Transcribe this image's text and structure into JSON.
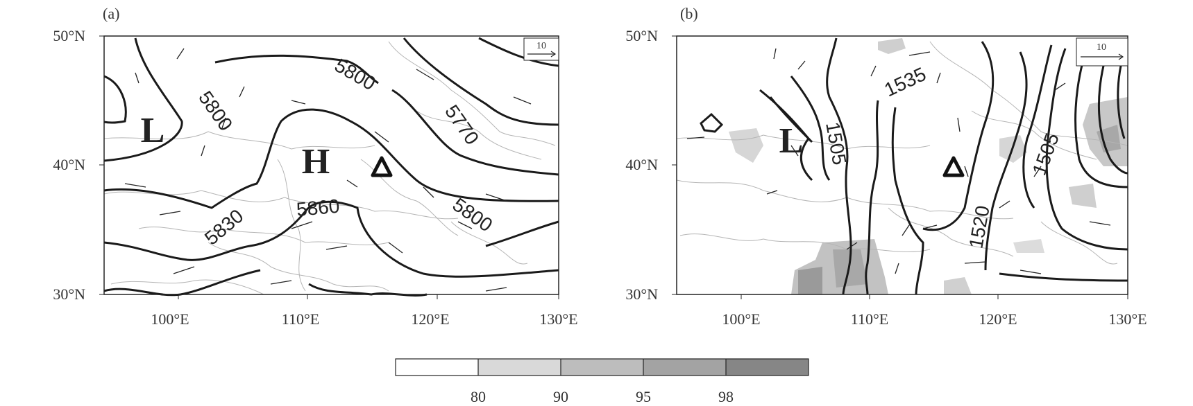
{
  "panels": [
    {
      "label": "(a)",
      "lat_ticks": [
        "50°N",
        "40°N",
        "30°N"
      ],
      "lon_ticks": [
        "100°E",
        "110°E",
        "120°E",
        "130°E"
      ],
      "ref_vector": "10",
      "centers": [
        "L",
        "H"
      ],
      "contour_labels": [
        "5800",
        "5800",
        "5770",
        "5800",
        "5830",
        "5860"
      ]
    },
    {
      "label": "(b)",
      "lat_ticks": [
        "50°N",
        "40°N",
        "30°N"
      ],
      "lon_ticks": [
        "100°E",
        "110°E",
        "120°E",
        "130°E"
      ],
      "ref_vector": "10",
      "centers": [
        "L"
      ],
      "contour_labels": [
        "1535",
        "1505",
        "1505",
        "1520"
      ]
    }
  ],
  "colorbar": {
    "labels": [
      "80",
      "90",
      "95",
      "98"
    ],
    "colors": [
      "#ffffff",
      "#d9d9d9",
      "#bdbdbd",
      "#a3a3a3",
      "#868686"
    ]
  },
  "station_marker": "triangle"
}
